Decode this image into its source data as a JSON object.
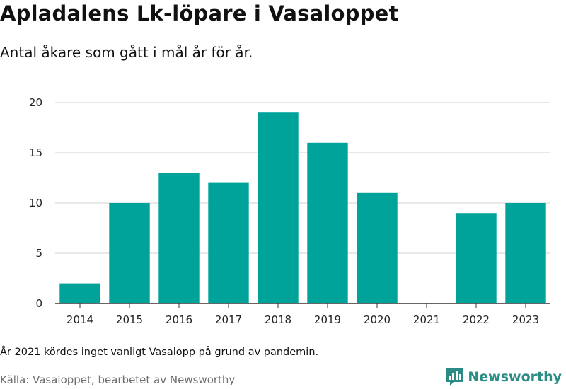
{
  "header": {
    "title": "Apladalens Lk-löpare i Vasaloppet",
    "subtitle": "Antal åkare som gått i mål år för år."
  },
  "footer": {
    "note": "År 2021 kördes inget vanligt Vasalopp på grund av pandemin.",
    "source": "Källa: Vasaloppet, bearbetet av Newsworthy",
    "brand": "Newsworthy"
  },
  "colors": {
    "bar": "#00a39a",
    "brand": "#2b8c86",
    "grid": "#d9d9d9",
    "axis": "#333333"
  },
  "chart_data": {
    "type": "bar",
    "title": "Apladalens Lk-löpare i Vasaloppet",
    "subtitle": "Antal åkare som gått i mål år för år.",
    "categories": [
      "2014",
      "2015",
      "2016",
      "2017",
      "2018",
      "2019",
      "2020",
      "2021",
      "2022",
      "2023"
    ],
    "values": [
      2,
      10,
      13,
      12,
      19,
      16,
      11,
      0,
      9,
      10
    ],
    "ylim": [
      0,
      20
    ],
    "yticks": [
      0,
      5,
      10,
      15,
      20
    ],
    "grid": true,
    "legend": false
  }
}
